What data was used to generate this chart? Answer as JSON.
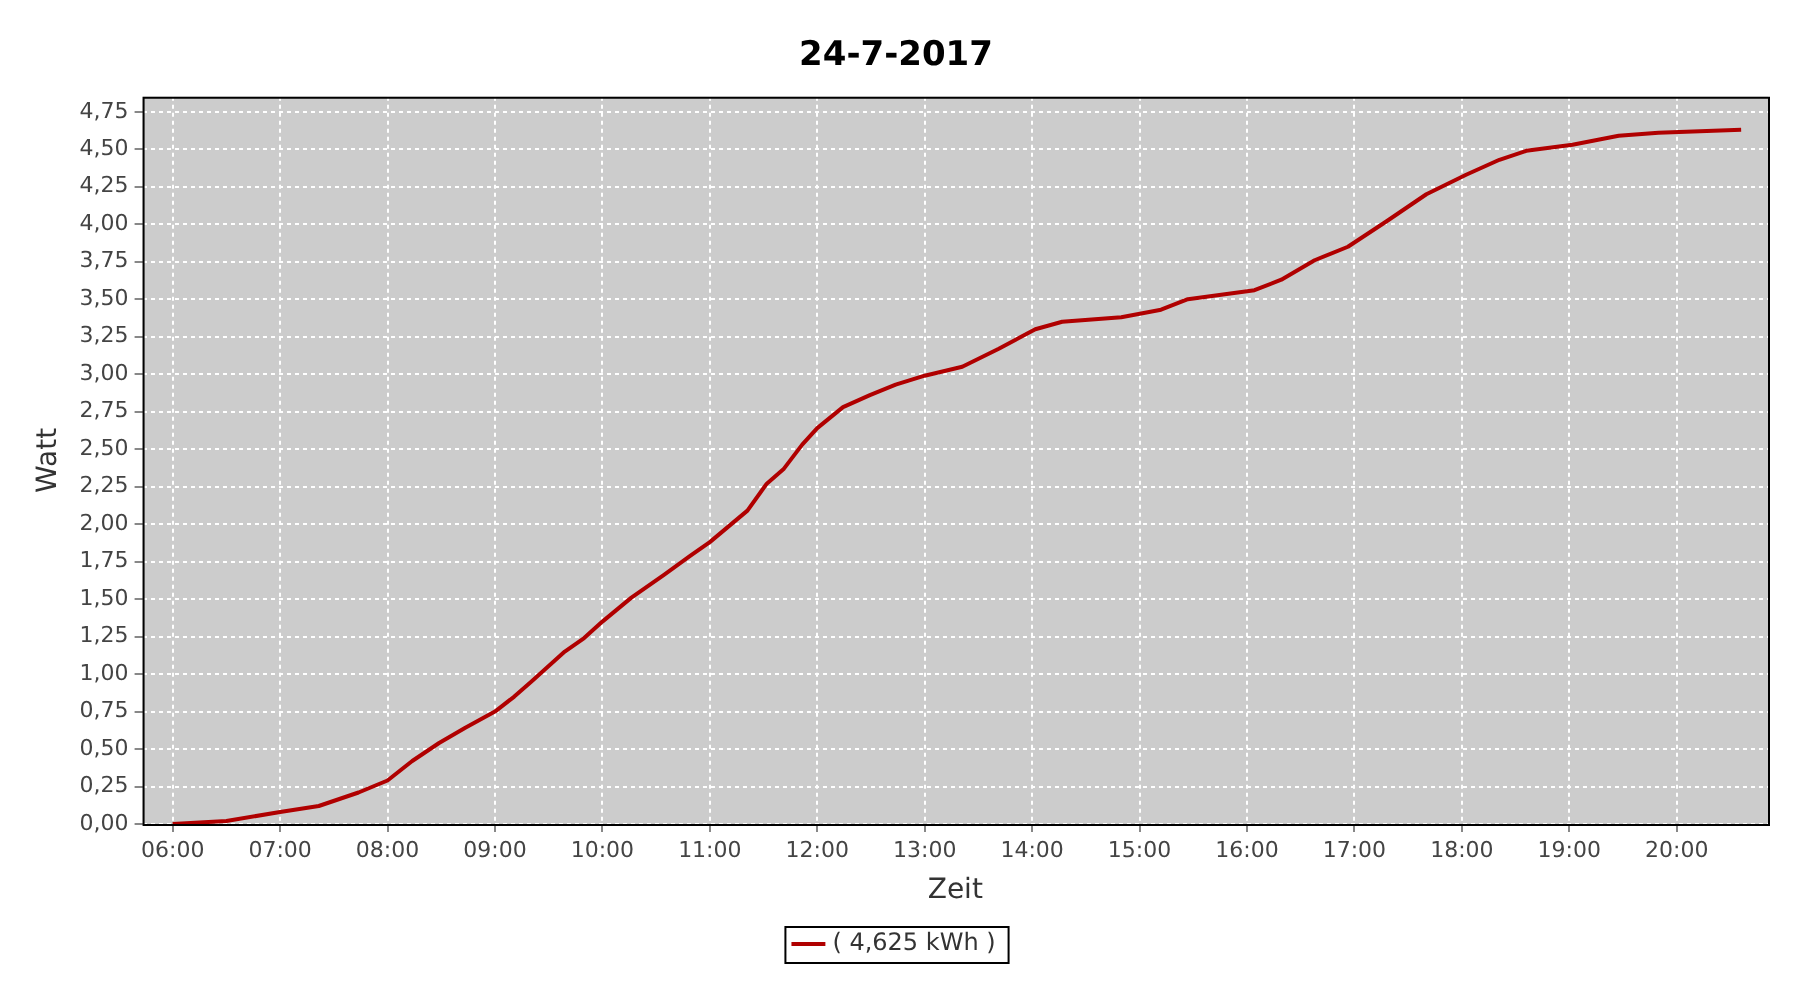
{
  "chart_data": {
    "type": "line",
    "title": "24-7-2017",
    "xlabel": "Zeit",
    "ylabel": "Watt",
    "xlim": [
      5.72,
      20.85
    ],
    "xticks": [
      {
        "value": 6,
        "label": "06:00"
      },
      {
        "value": 7,
        "label": "07:00"
      },
      {
        "value": 8,
        "label": "08:00"
      },
      {
        "value": 9,
        "label": "09:00"
      },
      {
        "value": 10,
        "label": "10:00"
      },
      {
        "value": 11,
        "label": "11:00"
      },
      {
        "value": 12,
        "label": "12:00"
      },
      {
        "value": 13,
        "label": "13:00"
      },
      {
        "value": 14,
        "label": "14:00"
      },
      {
        "value": 15,
        "label": "15:00"
      },
      {
        "value": 16,
        "label": "16:00"
      },
      {
        "value": 17,
        "label": "17:00"
      },
      {
        "value": 18,
        "label": "18:00"
      },
      {
        "value": 19,
        "label": "19:00"
      },
      {
        "value": 20,
        "label": "20:00"
      }
    ],
    "ylim": [
      0,
      4.85
    ],
    "yticks": [
      {
        "value": 0,
        "label": "0,00"
      },
      {
        "value": 0.25,
        "label": "0,25"
      },
      {
        "value": 0.5,
        "label": "0,50"
      },
      {
        "value": 0.75,
        "label": "0,75"
      },
      {
        "value": 1,
        "label": "1,00"
      },
      {
        "value": 1.25,
        "label": "1,25"
      },
      {
        "value": 1.5,
        "label": "1,50"
      },
      {
        "value": 1.75,
        "label": "1,75"
      },
      {
        "value": 2,
        "label": "2,00"
      },
      {
        "value": 2.25,
        "label": "2,25"
      },
      {
        "value": 2.5,
        "label": "2,50"
      },
      {
        "value": 2.75,
        "label": "2,75"
      },
      {
        "value": 3,
        "label": "3,00"
      },
      {
        "value": 3.25,
        "label": "3,25"
      },
      {
        "value": 3.5,
        "label": "3,50"
      },
      {
        "value": 3.75,
        "label": "3,75"
      },
      {
        "value": 4,
        "label": "4,00"
      },
      {
        "value": 4.25,
        "label": "4,25"
      },
      {
        "value": 4.5,
        "label": "4,50"
      },
      {
        "value": 4.75,
        "label": "4,75"
      }
    ],
    "grid": true,
    "legend": "bottom",
    "marker": "none",
    "line_style": "solid",
    "series": [
      {
        "name": "( 4,625 kWh )",
        "color": "#b00000",
        "x": [
          6.0,
          6.5,
          7.0,
          7.36,
          7.73,
          8.0,
          8.23,
          8.48,
          8.72,
          9.0,
          9.18,
          9.34,
          9.65,
          9.83,
          10.0,
          10.27,
          10.57,
          10.82,
          11.0,
          11.35,
          11.53,
          11.69,
          11.86,
          12.0,
          12.24,
          12.49,
          12.73,
          13.0,
          13.35,
          13.69,
          14.03,
          14.28,
          14.83,
          15.2,
          15.45,
          16.07,
          16.32,
          16.63,
          16.94,
          17.3,
          17.67,
          18.04,
          18.35,
          18.6,
          19.03,
          19.46,
          19.83,
          20.6
        ],
        "values": [
          0,
          0.02,
          0.08,
          0.12,
          0.21,
          0.29,
          0.42,
          0.54,
          0.64,
          0.75,
          0.85,
          0.95,
          1.15,
          1.24,
          1.35,
          1.51,
          1.66,
          1.79,
          1.88,
          2.09,
          2.27,
          2.37,
          2.53,
          2.64,
          2.78,
          2.86,
          2.93,
          2.99,
          3.05,
          3.17,
          3.3,
          3.35,
          3.38,
          3.43,
          3.5,
          3.56,
          3.63,
          3.76,
          3.85,
          4.02,
          4.2,
          4.33,
          4.43,
          4.49,
          4.53,
          4.59,
          4.61,
          4.63
        ]
      }
    ]
  }
}
